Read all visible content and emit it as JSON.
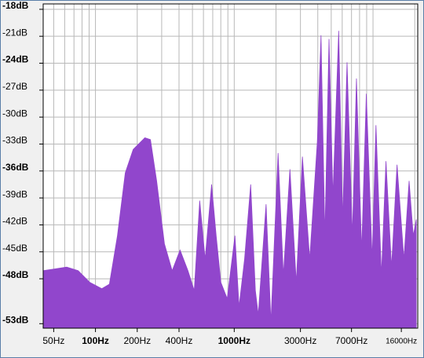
{
  "chart_data": {
    "type": "area",
    "color": "#9146cc",
    "xscale": "log",
    "grid": true,
    "xlim": [
      42,
      21000
    ],
    "ylim": [
      -53.5,
      -17.4
    ],
    "yticks": [
      {
        "value": -18,
        "label": "-18dB",
        "bold": true
      },
      {
        "value": -21,
        "label": "-21dB"
      },
      {
        "value": -24,
        "label": "-24dB",
        "bold": true
      },
      {
        "value": -27,
        "label": "-27dB"
      },
      {
        "value": -30,
        "label": "-30dB"
      },
      {
        "value": -33,
        "label": "-33dB"
      },
      {
        "value": -36,
        "label": "-36dB",
        "bold": true
      },
      {
        "value": -39,
        "label": "-39dB"
      },
      {
        "value": -42,
        "label": "-42dB"
      },
      {
        "value": -45,
        "label": "-45dB"
      },
      {
        "value": -48,
        "label": "-48dB",
        "bold": true
      },
      {
        "value": -53,
        "label": "-53dB",
        "bold": true
      }
    ],
    "xticks": [
      {
        "value": 50,
        "label": "50Hz"
      },
      {
        "value": 100,
        "label": "100Hz",
        "bold": true
      },
      {
        "value": 200,
        "label": "200Hz"
      },
      {
        "value": 400,
        "label": "400Hz"
      },
      {
        "value": 1000,
        "label": "1000Hz",
        "bold": true
      },
      {
        "value": 3000,
        "label": "3000Hz"
      },
      {
        "value": 7000,
        "label": "7000Hz"
      },
      {
        "value": 16000,
        "label": "16000Hz"
      }
    ],
    "xgrid": [
      50,
      60,
      70,
      80,
      90,
      100,
      200,
      300,
      400,
      500,
      600,
      700,
      800,
      900,
      1000,
      2000,
      3000,
      4000,
      5000,
      6000,
      7000,
      8000,
      9000,
      10000,
      20000
    ],
    "x": [
      42,
      51,
      62,
      75,
      91,
      111,
      126,
      144,
      164,
      187,
      227,
      249,
      276,
      314,
      357,
      407,
      464,
      515,
      564,
      617,
      687,
      741,
      801,
      890,
      1012,
      1083,
      1187,
      1314,
      1420,
      1490,
      1696,
      1839,
      2070,
      2260,
      2520,
      2800,
      3100,
      3500,
      3970,
      4220,
      4500,
      4820,
      5140,
      5660,
      6040,
      6500,
      7100,
      7600,
      8280,
      8950,
      9860,
      10500,
      11500,
      12400,
      13600,
      14900,
      16700,
      18200,
      19500,
      20500
    ],
    "values": [
      -47.1,
      -46.9,
      -46.7,
      -47.1,
      -48.4,
      -49.1,
      -48.6,
      -43.2,
      -36.2,
      -33.6,
      -32.3,
      -32.5,
      -37.1,
      -44.1,
      -47.1,
      -44.8,
      -47.1,
      -49.3,
      -39.3,
      -45.8,
      -37.5,
      -43.2,
      -48.4,
      -50.2,
      -43.2,
      -51.1,
      -45.8,
      -37.5,
      -49.3,
      -52,
      -39.7,
      -52.8,
      -34,
      -47.6,
      -35.8,
      -48.4,
      -34.4,
      -45.8,
      -32.7,
      -20.9,
      -43.2,
      -21.3,
      -38.8,
      -20.4,
      -41.4,
      -23.9,
      -43.2,
      -25.7,
      -44.9,
      -27.4,
      -45.8,
      -30.9,
      -47.6,
      -34.9,
      -46.7,
      -35.3,
      -45.8,
      -37.1,
      -43.2,
      -41.4
    ]
  }
}
